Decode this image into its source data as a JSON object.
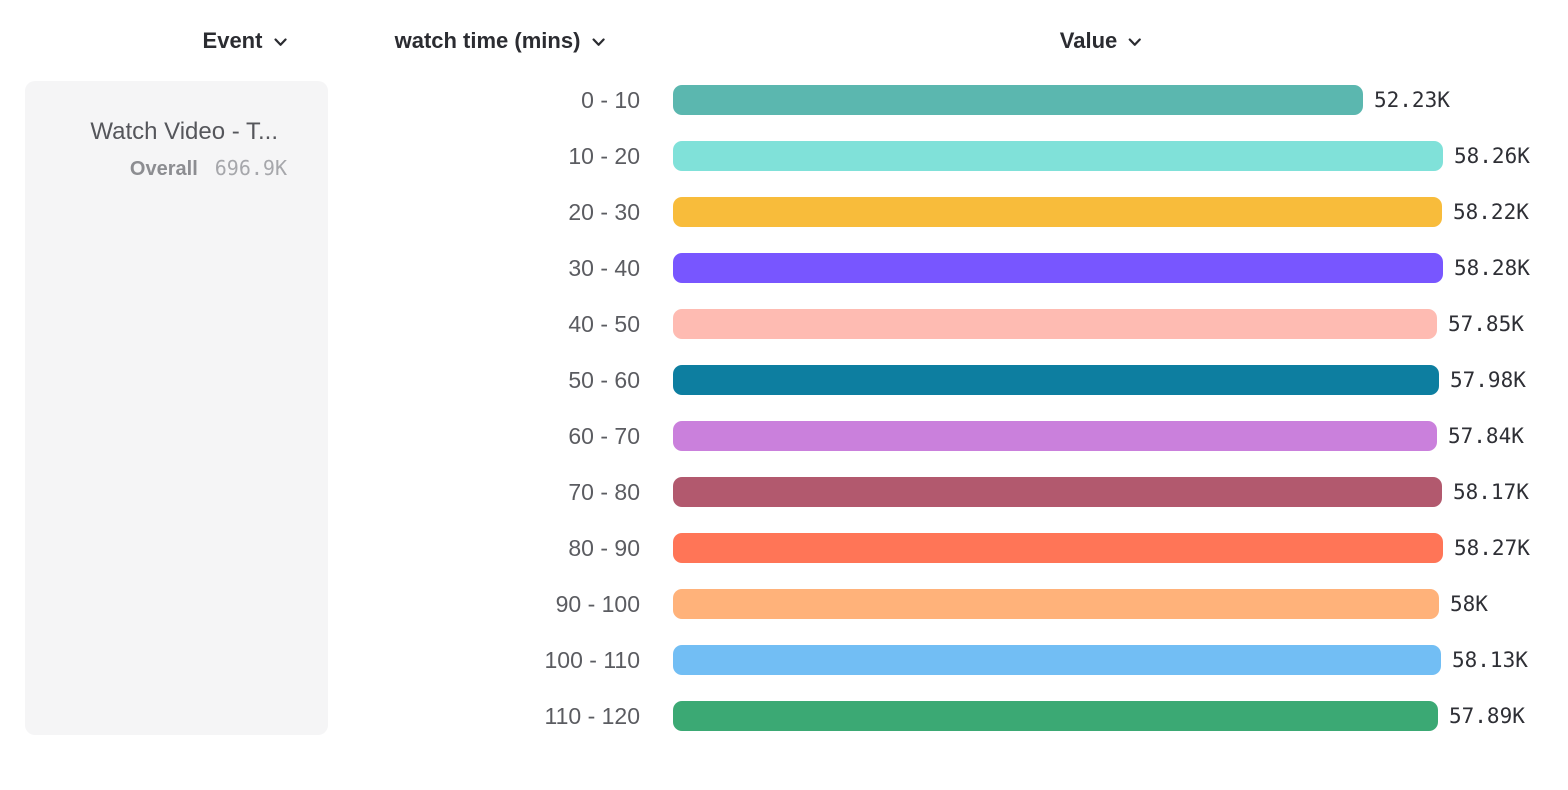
{
  "columns": [
    {
      "label": "Event"
    },
    {
      "label": "watch time (mins)"
    },
    {
      "label": "Value"
    }
  ],
  "event_card": {
    "title": "Watch Video - T...",
    "overall_label": "Overall",
    "overall_value": "696.9K"
  },
  "chart_data": {
    "type": "bar",
    "orientation": "horizontal",
    "title": "",
    "xlabel": "Value",
    "ylabel": "watch time (mins)",
    "xlim": [
      0,
      58280
    ],
    "grid": false,
    "legend": false,
    "categories": [
      "0 - 10",
      "10 - 20",
      "20 - 30",
      "30 - 40",
      "40 - 50",
      "50 - 60",
      "60 - 70",
      "70 - 80",
      "80 - 90",
      "90 - 100",
      "100 - 110",
      "110 - 120"
    ],
    "values": [
      52230,
      58260,
      58220,
      58280,
      57850,
      57980,
      57840,
      58170,
      58270,
      58000,
      58130,
      57890
    ],
    "value_labels": [
      "52.23K",
      "58.26K",
      "58.22K",
      "58.28K",
      "57.85K",
      "57.98K",
      "57.84K",
      "58.17K",
      "58.27K",
      "58K",
      "58.13K",
      "57.89K"
    ],
    "bar_colors": [
      "#5BB7AF",
      "#80E1D9",
      "#F8BC3B",
      "#7856FF",
      "#FEBBB2",
      "#0D7EA0",
      "#CA80DC",
      "#B2596E",
      "#FF7557",
      "#FFB27A",
      "#72BEF4",
      "#3BA974"
    ]
  },
  "colors": {
    "page_bg": "#FFFFFF",
    "card_bg": "#F5F5F6",
    "header_text": "#2B2C31",
    "bucket_label_text": "#5B5C61",
    "value_label_text": "#2E2F35",
    "card_title_text": "#55565B",
    "overall_label_text": "#8C8D91",
    "overall_value_text": "#A6A7AB"
  }
}
